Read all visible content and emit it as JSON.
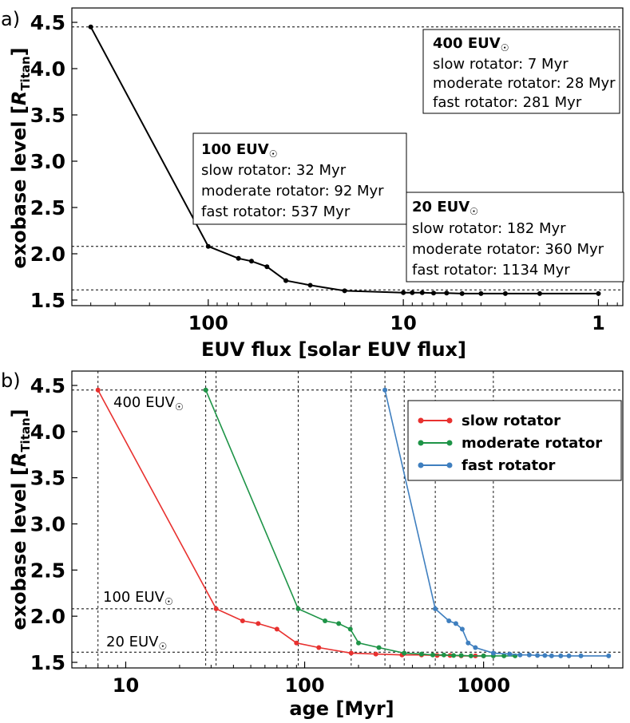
{
  "chart_data": [
    {
      "panel_label": "a)",
      "type": "line",
      "xlabel": "EUV flux [solar EUV flux]",
      "ylabel": "exobase level [",
      "ylabel_var": "R",
      "ylabel_sub": "Titan",
      "ylabel_close": "]",
      "x_scale": "log",
      "x_inverted": true,
      "xlim": [
        500,
        0.75
      ],
      "ylim": [
        1.5,
        4.5
      ],
      "x_tick_labels": [
        "100",
        "10",
        "1"
      ],
      "y_tick_labels": [
        "1.5",
        "2.0",
        "2.5",
        "3.0",
        "3.5",
        "4.0",
        "4.5"
      ],
      "color": "#000000",
      "x": [
        400,
        100,
        70,
        60,
        50,
        40,
        30,
        20,
        10,
        9,
        8,
        7,
        6,
        5,
        4,
        3,
        2,
        1
      ],
      "y": [
        4.45,
        2.08,
        1.95,
        1.92,
        1.86,
        1.71,
        1.66,
        1.6,
        1.58,
        1.58,
        1.58,
        1.575,
        1.575,
        1.57,
        1.57,
        1.57,
        1.57,
        1.57
      ],
      "ref_lines": [
        4.45,
        2.08,
        1.61
      ],
      "boxes": [
        {
          "title": "400 EUV",
          "lines": [
            "slow rotator: 7 Myr",
            "moderate rotator: 28 Myr",
            "fast rotator: 281 Myr"
          ]
        },
        {
          "title": "100 EUV",
          "lines": [
            "slow rotator: 32 Myr",
            "moderate rotator: 92 Myr",
            "fast rotator: 537 Myr"
          ]
        },
        {
          "title": "20 EUV",
          "lines": [
            "slow rotator: 182 Myr",
            "moderate rotator: 360 Myr",
            "fast rotator: 1134 Myr"
          ]
        }
      ],
      "grid": false
    },
    {
      "panel_label": "b)",
      "type": "line",
      "xlabel": "age [Myr]",
      "ylabel": "exobase level [",
      "ylabel_var": "R",
      "ylabel_sub": "Titan",
      "ylabel_close": "]",
      "x_scale": "log",
      "xlim": [
        5,
        6000
      ],
      "ylim": [
        1.5,
        4.5
      ],
      "x_tick_labels": [
        "10",
        "100",
        "1000"
      ],
      "y_tick_labels": [
        "1.5",
        "2.0",
        "2.5",
        "3.0",
        "3.5",
        "4.0",
        "4.5"
      ],
      "ref_lines": [
        4.45,
        2.08,
        1.61
      ],
      "vlines": [
        7,
        28,
        32,
        92,
        182,
        281,
        360,
        537,
        1134
      ],
      "annotations": [
        "400 EUV",
        "100 EUV",
        "20 EUV"
      ],
      "legend_position": "upper right",
      "grid": false,
      "series": [
        {
          "name": "slow rotator",
          "color": "#e8312f",
          "x": [
            7,
            32,
            45,
            55,
            70,
            90,
            120,
            182,
            250,
            350,
            450,
            550,
            650,
            750,
            900,
            1000
          ],
          "y": [
            4.45,
            2.08,
            1.95,
            1.92,
            1.86,
            1.71,
            1.66,
            1.6,
            1.59,
            1.58,
            1.58,
            1.575,
            1.575,
            1.57,
            1.57,
            1.57
          ]
        },
        {
          "name": "moderate rotator",
          "color": "#1e9447",
          "x": [
            28,
            92,
            130,
            155,
            180,
            200,
            260,
            360,
            450,
            520,
            600,
            680,
            750,
            850,
            1000,
            1134,
            1300,
            1500
          ],
          "y": [
            4.45,
            2.08,
            1.95,
            1.92,
            1.86,
            1.71,
            1.66,
            1.6,
            1.59,
            1.58,
            1.58,
            1.575,
            1.575,
            1.57,
            1.57,
            1.57,
            1.57,
            1.57
          ]
        },
        {
          "name": "fast rotator",
          "color": "#3f7fbf",
          "x": [
            281,
            537,
            640,
            700,
            760,
            820,
            900,
            1134,
            1400,
            1600,
            1800,
            2000,
            2200,
            2400,
            2700,
            3000,
            3500,
            5000
          ],
          "y": [
            4.45,
            2.08,
            1.95,
            1.92,
            1.86,
            1.71,
            1.66,
            1.6,
            1.59,
            1.58,
            1.58,
            1.575,
            1.575,
            1.57,
            1.57,
            1.57,
            1.57,
            1.57
          ]
        }
      ]
    }
  ]
}
